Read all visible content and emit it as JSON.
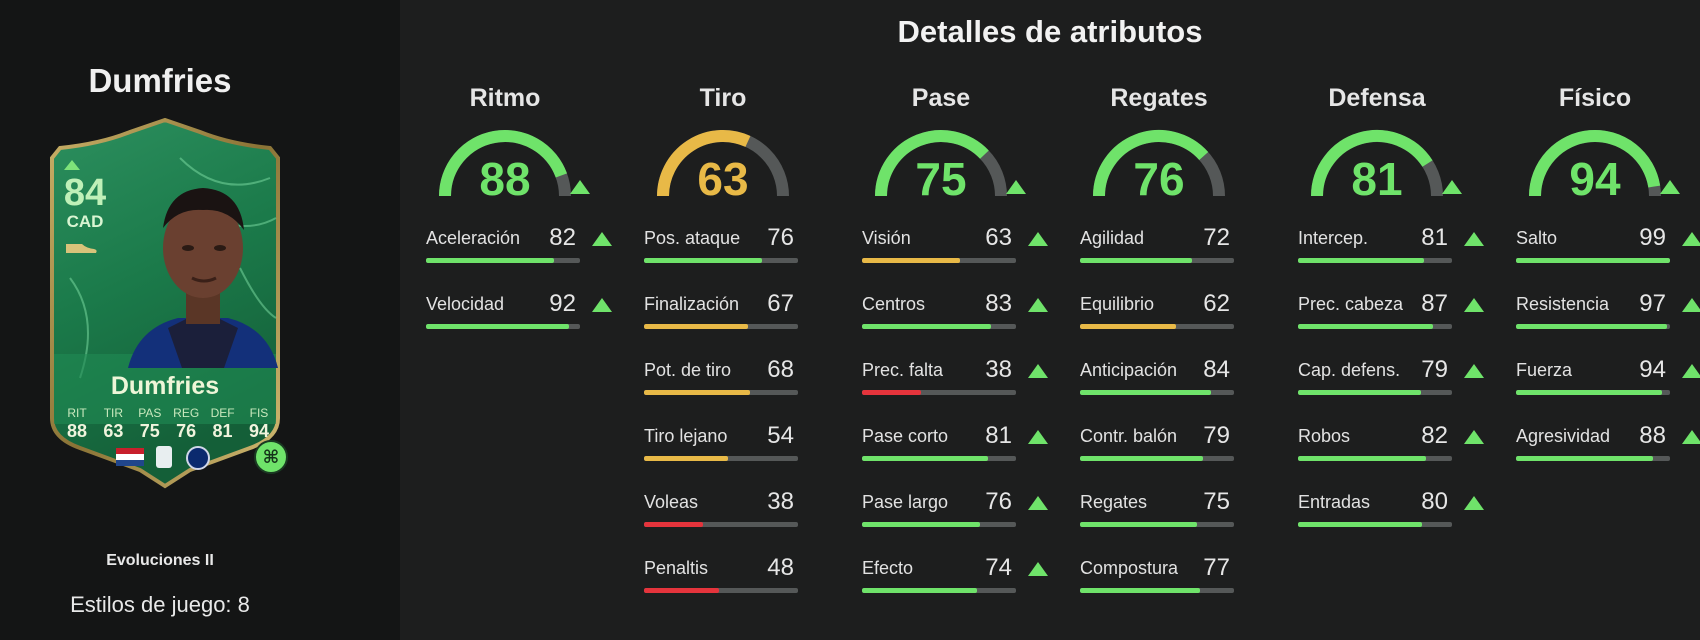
{
  "player": {
    "name": "Dumfries",
    "card_name": "Dumfries",
    "rating": "84",
    "position": "CAD",
    "card_stats": [
      {
        "label": "RIT",
        "value": "88"
      },
      {
        "label": "TIR",
        "value": "63"
      },
      {
        "label": "PAS",
        "value": "75"
      },
      {
        "label": "REG",
        "value": "76"
      },
      {
        "label": "DEF",
        "value": "81"
      },
      {
        "label": "FIS",
        "value": "94"
      }
    ],
    "evo_title": "Evoluciones II",
    "playstyles": "Estilos de juego: 8"
  },
  "main_title": "Detalles de atributos",
  "colors": {
    "green": "#6fe36a",
    "yellow": "#e8b947",
    "red": "#e5343c",
    "track": "#555858"
  },
  "categories": [
    {
      "title": "Ritmo",
      "value": 88,
      "upgraded": true,
      "attributes": [
        {
          "label": "Aceleración",
          "value": 82,
          "upgraded": true
        },
        {
          "label": "Velocidad",
          "value": 92,
          "upgraded": true
        }
      ]
    },
    {
      "title": "Tiro",
      "value": 63,
      "upgraded": false,
      "attributes": [
        {
          "label": "Pos. ataque",
          "value": 76,
          "upgraded": false
        },
        {
          "label": "Finalización",
          "value": 67,
          "upgraded": false
        },
        {
          "label": "Pot. de tiro",
          "value": 68,
          "upgraded": false
        },
        {
          "label": "Tiro lejano",
          "value": 54,
          "upgraded": false
        },
        {
          "label": "Voleas",
          "value": 38,
          "upgraded": false
        },
        {
          "label": "Penaltis",
          "value": 48,
          "upgraded": false
        }
      ]
    },
    {
      "title": "Pase",
      "value": 75,
      "upgraded": true,
      "attributes": [
        {
          "label": "Visión",
          "value": 63,
          "upgraded": true
        },
        {
          "label": "Centros",
          "value": 83,
          "upgraded": true
        },
        {
          "label": "Prec. falta",
          "value": 38,
          "upgraded": true
        },
        {
          "label": "Pase corto",
          "value": 81,
          "upgraded": true
        },
        {
          "label": "Pase largo",
          "value": 76,
          "upgraded": true
        },
        {
          "label": "Efecto",
          "value": 74,
          "upgraded": true
        }
      ]
    },
    {
      "title": "Regates",
      "value": 76,
      "upgraded": false,
      "attributes": [
        {
          "label": "Agilidad",
          "value": 72,
          "upgraded": false
        },
        {
          "label": "Equilibrio",
          "value": 62,
          "upgraded": false
        },
        {
          "label": "Anticipación",
          "value": 84,
          "upgraded": false
        },
        {
          "label": "Contr. balón",
          "value": 79,
          "upgraded": false
        },
        {
          "label": "Regates",
          "value": 75,
          "upgraded": false
        },
        {
          "label": "Compostura",
          "value": 77,
          "upgraded": false
        }
      ]
    },
    {
      "title": "Defensa",
      "value": 81,
      "upgraded": true,
      "attributes": [
        {
          "label": "Intercep.",
          "value": 81,
          "upgraded": true
        },
        {
          "label": "Prec. cabeza",
          "value": 87,
          "upgraded": true
        },
        {
          "label": "Cap. defens.",
          "value": 79,
          "upgraded": true
        },
        {
          "label": "Robos",
          "value": 82,
          "upgraded": true
        },
        {
          "label": "Entradas",
          "value": 80,
          "upgraded": true
        }
      ]
    },
    {
      "title": "Físico",
      "value": 94,
      "upgraded": true,
      "attributes": [
        {
          "label": "Salto",
          "value": 99,
          "upgraded": true
        },
        {
          "label": "Resistencia",
          "value": 97,
          "upgraded": true
        },
        {
          "label": "Fuerza",
          "value": 94,
          "upgraded": true
        },
        {
          "label": "Agresividad",
          "value": 88,
          "upgraded": true
        }
      ]
    }
  ]
}
